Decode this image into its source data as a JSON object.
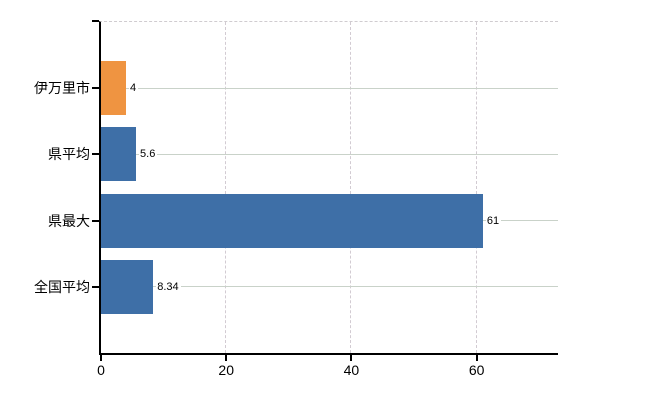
{
  "chart_data": {
    "type": "bar",
    "orientation": "horizontal",
    "title": "",
    "xlabel": "",
    "ylabel": "",
    "categories": [
      "伊万里市",
      "県平均",
      "県最大",
      "全国平均"
    ],
    "values": [
      4,
      5.6,
      61,
      8.34
    ],
    "value_labels": [
      "4",
      "5.6",
      "61",
      "8.34"
    ],
    "bar_colors": [
      "#ef9441",
      "#3e6fa7",
      "#3e6fa7",
      "#3e6fa7"
    ],
    "x_ticks": [
      0,
      20,
      40,
      60
    ],
    "x_tick_labels": [
      "0",
      "20",
      "40",
      "60"
    ],
    "xlim": [
      0,
      73
    ],
    "legend": null,
    "grid": {
      "vertical": "dashed",
      "horizontal": "solid"
    },
    "colors": {
      "bar_default": "#3e6fa7",
      "bar_highlight": "#ef9441",
      "grid_horizontal": "#c9d2c9",
      "grid_vertical": "#d2cbd2",
      "axis": "#000000",
      "text": "#000000",
      "background": "#ffffff"
    }
  }
}
